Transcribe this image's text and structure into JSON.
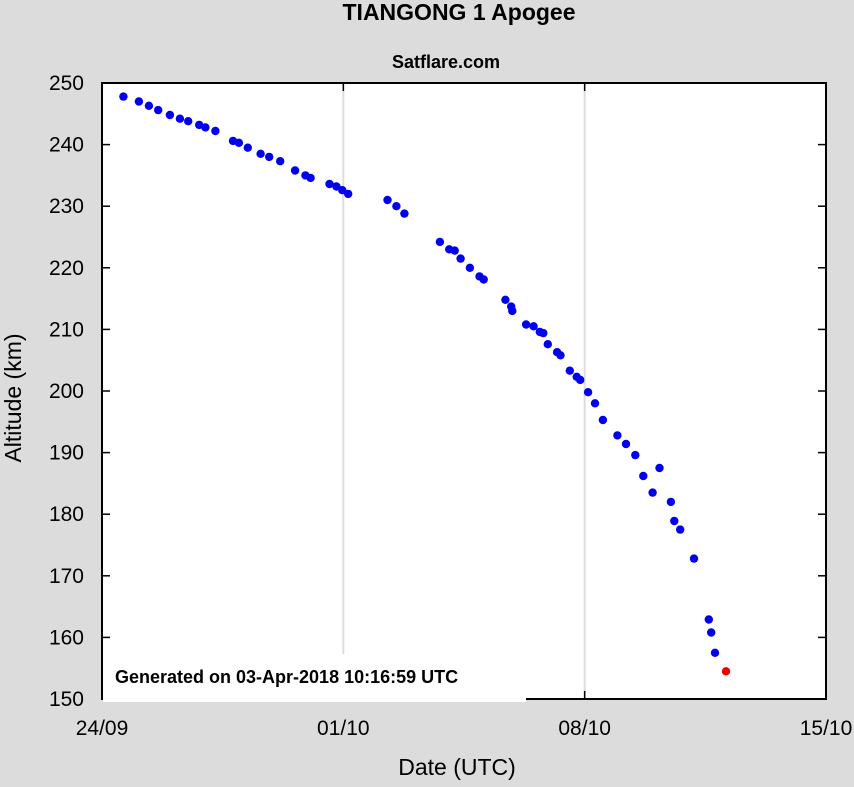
{
  "chart_data": {
    "type": "scatter",
    "title": "TIANGONG 1 Apogee",
    "subtitle": "Satflare.com",
    "xlabel": "Date (UTC)",
    "ylabel": "Altitude (km)",
    "x_unit": "days",
    "x_ticks": [
      {
        "label": "24/09",
        "value": 0
      },
      {
        "label": "01/10",
        "value": 7
      },
      {
        "label": "08/10",
        "value": 14
      },
      {
        "label": "15/10",
        "value": 21
      }
    ],
    "xlim": [
      0,
      21
    ],
    "ylim": [
      150,
      250
    ],
    "y_ticks": [
      150,
      160,
      170,
      180,
      190,
      200,
      210,
      220,
      230,
      240,
      250
    ],
    "grid": true,
    "annotation": "Generated on 03-Apr-2018 10:16:59 UTC",
    "colors": {
      "series": "#0000ee",
      "latest": "#ee0000",
      "background": "#dcdcdc",
      "plot_bg": "#ffffff",
      "grid": "#dddddd"
    },
    "series": [
      {
        "x": [
          0.62,
          1.07,
          1.36,
          1.63,
          1.97,
          2.26,
          2.5,
          2.82,
          3.0,
          3.29,
          3.8,
          3.97,
          4.23,
          4.6,
          4.85,
          5.17,
          5.6,
          5.9,
          6.05,
          6.6,
          6.8,
          6.97,
          7.14,
          8.28,
          8.54,
          8.77,
          9.8,
          10.07,
          10.23,
          10.4,
          10.67,
          10.95,
          11.07,
          11.7,
          11.87,
          11.9,
          12.3,
          12.52,
          12.7,
          12.8,
          12.93,
          13.2,
          13.3,
          13.57,
          13.77,
          13.87,
          14.1,
          14.3,
          14.53,
          14.95,
          15.2,
          15.47,
          15.7,
          15.97,
          16.17,
          16.5,
          16.6,
          16.77,
          17.17,
          17.6,
          17.67,
          17.78,
          18.1
        ],
        "y": [
          247.8,
          247.0,
          246.3,
          245.6,
          244.8,
          244.2,
          243.8,
          243.2,
          242.8,
          242.2,
          240.6,
          240.3,
          239.5,
          238.5,
          238.0,
          237.3,
          235.8,
          235.0,
          234.6,
          233.6,
          233.2,
          232.6,
          232.0,
          231.0,
          230.0,
          228.8,
          224.2,
          223.0,
          222.8,
          221.5,
          220.0,
          218.6,
          218.1,
          214.8,
          213.7,
          213.0,
          210.8,
          210.5,
          209.6,
          209.4,
          207.6,
          206.3,
          205.8,
          203.3,
          202.3,
          201.8,
          199.8,
          198.0,
          195.3,
          192.8,
          191.4,
          189.6,
          186.2,
          183.5,
          187.5,
          182.0,
          178.9,
          177.5,
          172.8,
          162.9,
          160.8,
          157.5,
          154.5
        ]
      }
    ]
  }
}
